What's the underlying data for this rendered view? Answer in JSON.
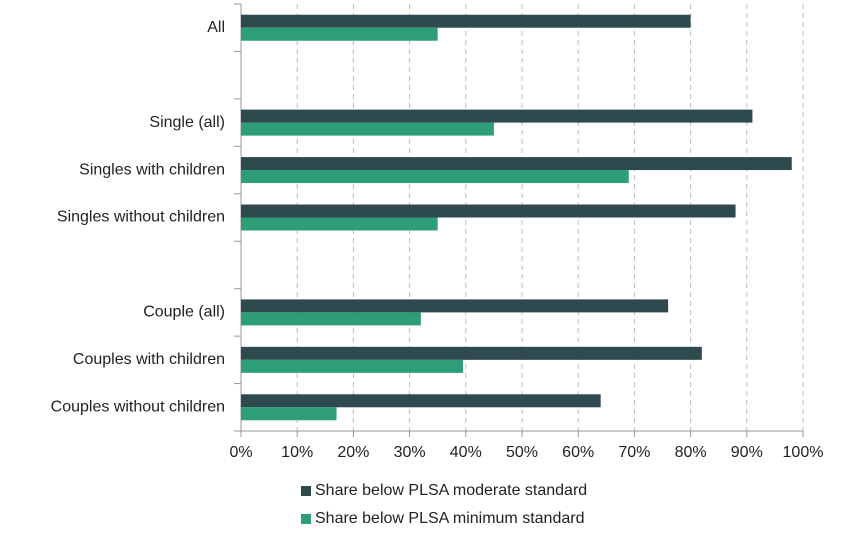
{
  "chart_data": {
    "type": "hbar",
    "categories": [
      "All",
      null,
      "Single (all)",
      "Singles with children",
      "Singles without children",
      null,
      "Couple (all)",
      "Couples with children",
      "Couples without children"
    ],
    "series": [
      {
        "name": "Share below PLSA moderate standard",
        "color": "#2f4a4f",
        "values": [
          80,
          null,
          91,
          98,
          88,
          null,
          76,
          82,
          64
        ]
      },
      {
        "name": "Share below PLSA minimum standard",
        "color": "#2e9e78",
        "values": [
          35,
          null,
          45,
          69,
          35,
          null,
          32,
          39.5,
          17
        ]
      }
    ],
    "xlim": [
      0,
      100
    ],
    "xticks": [
      {
        "value": 0,
        "label": "0%"
      },
      {
        "value": 10,
        "label": "10%"
      },
      {
        "value": 20,
        "label": "20%"
      },
      {
        "value": 30,
        "label": "30%"
      },
      {
        "value": 40,
        "label": "40%"
      },
      {
        "value": 50,
        "label": "50%"
      },
      {
        "value": 60,
        "label": "60%"
      },
      {
        "value": 70,
        "label": "70%"
      },
      {
        "value": 80,
        "label": "80%"
      },
      {
        "value": 90,
        "label": "90%"
      },
      {
        "value": 100,
        "label": "100%"
      }
    ],
    "grid": true,
    "legend": "bottom"
  }
}
